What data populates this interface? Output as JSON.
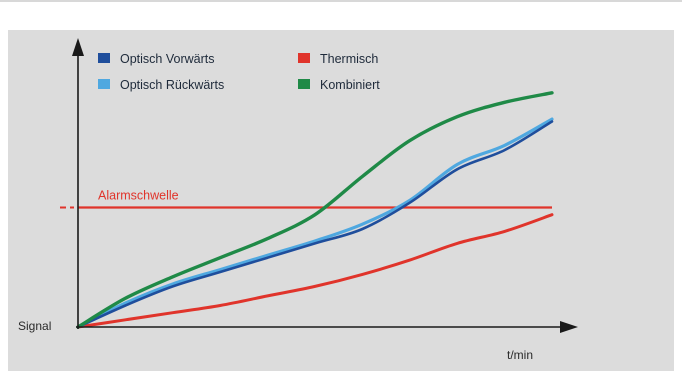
{
  "chart_data": {
    "type": "line",
    "title": "",
    "xlabel": "t/min",
    "ylabel": "Signal",
    "xlim": [
      0,
      10
    ],
    "ylim": [
      0,
      10
    ],
    "grid": false,
    "legend_position": "top-left",
    "threshold": {
      "label": "Alarmschwelle",
      "value": 5.0,
      "color": "#e0342b"
    },
    "x": [
      0,
      1,
      2,
      3,
      4,
      5,
      6,
      7,
      8,
      9,
      10
    ],
    "series": [
      {
        "name": "Optisch Vorwärts",
        "color": "#1f4e9c",
        "values": [
          0,
          0.9,
          1.7,
          2.3,
          2.9,
          3.5,
          4.1,
          5.2,
          6.6,
          7.4,
          8.6
        ]
      },
      {
        "name": "Optisch Rückwärts",
        "color": "#4fa8e0",
        "values": [
          0,
          1.0,
          1.8,
          2.4,
          3.0,
          3.6,
          4.3,
          5.3,
          6.8,
          7.6,
          8.7
        ]
      },
      {
        "name": "Thermisch",
        "color": "#e0342b",
        "values": [
          0,
          0.3,
          0.6,
          0.9,
          1.3,
          1.7,
          2.2,
          2.8,
          3.5,
          4.0,
          4.7
        ]
      },
      {
        "name": "Kombiniert",
        "color": "#1f8a47",
        "values": [
          0,
          1.2,
          2.1,
          2.9,
          3.7,
          4.7,
          6.3,
          7.8,
          8.8,
          9.4,
          9.8
        ]
      }
    ]
  }
}
